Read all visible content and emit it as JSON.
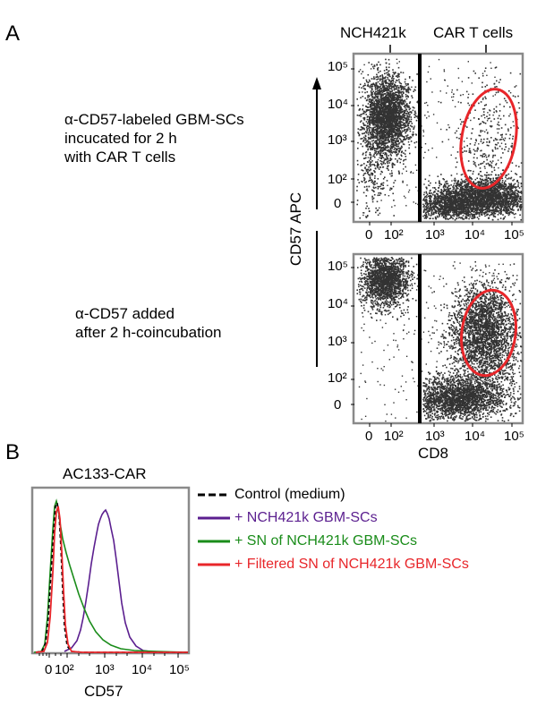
{
  "panel_a": {
    "letter": "A",
    "top_text": {
      "lines": [
        "α-CD57-labeled GBM-SCs",
        "incucated for 2 h",
        "with CAR T cells"
      ]
    },
    "bottom_text": {
      "lines": [
        "α-CD57 added",
        "after 2 h-coincubation"
      ]
    },
    "population_labels": [
      "NCH421k",
      "CAR T cells"
    ],
    "y_axis_label": "CD57 APC",
    "x_axis_label": "CD8",
    "y_ticks": [
      "10⁵",
      "10⁴",
      "10³",
      "10²",
      "0"
    ],
    "x_ticks": [
      "0",
      "10²",
      "10³",
      "10⁴",
      "10⁵"
    ],
    "gate_color": "#e8262a",
    "dot_color": "#333333"
  },
  "panel_b": {
    "letter": "B",
    "title": "AC133-CAR",
    "x_axis_label": "CD57",
    "x_ticks": [
      "0",
      "10²",
      "10³",
      "10⁴",
      "10⁵"
    ],
    "legend": [
      {
        "label": "Control (medium)",
        "color": "#000000",
        "dashed": true
      },
      {
        "label": "+ NCH421k GBM-SCs",
        "color": "#5b1f8f",
        "dashed": false
      },
      {
        "label": "+ SN of NCH421k GBM-SCs",
        "color": "#1a8c1a",
        "dashed": false
      },
      {
        "label": "+ Filtered SN of NCH421k GBM-SCs",
        "color": "#e8262a",
        "dashed": false
      }
    ]
  }
}
